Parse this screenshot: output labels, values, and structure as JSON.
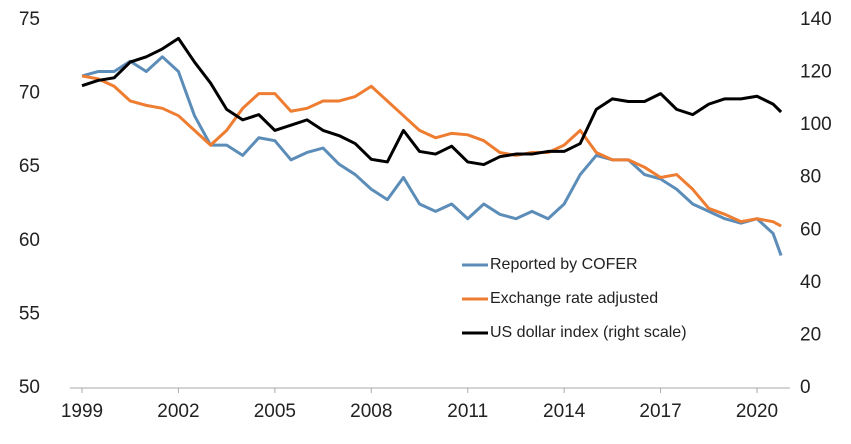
{
  "chart_data": {
    "type": "line",
    "x": [
      1999,
      1999.5,
      2000,
      2000.5,
      2001,
      2001.5,
      2002,
      2002.5,
      2003,
      2003.5,
      2004,
      2004.5,
      2005,
      2005.5,
      2006,
      2006.5,
      2007,
      2007.5,
      2008,
      2008.5,
      2009,
      2009.5,
      2010,
      2010.5,
      2011,
      2011.5,
      2012,
      2012.5,
      2013,
      2013.5,
      2014,
      2014.5,
      2015,
      2015.5,
      2016,
      2016.5,
      2017,
      2017.5,
      2018,
      2018.5,
      2019,
      2019.5,
      2020,
      2020.5,
      2020.75
    ],
    "series": [
      {
        "name": "Reported by COFER",
        "color": "#5b8db8",
        "values": [
          71.2,
          71.5,
          71.5,
          72.2,
          71.5,
          72.5,
          71.5,
          68.5,
          66.5,
          66.5,
          65.8,
          67,
          66.8,
          65.5,
          66,
          66.3,
          65.2,
          64.5,
          63.5,
          62.8,
          64.3,
          62.5,
          62,
          62.5,
          61.5,
          62.5,
          61.8,
          61.5,
          62,
          61.5,
          62.5,
          64.5,
          65.8,
          65.5,
          65.5,
          64.5,
          64.2,
          63.5,
          62.5,
          62,
          61.5,
          61.2,
          61.5,
          60.5,
          59
        ]
      },
      {
        "name": "Exchange rate adjusted",
        "color": "#ee7d31",
        "values": [
          71.2,
          71,
          70.5,
          69.5,
          69.2,
          69,
          68.5,
          67.5,
          66.5,
          67.5,
          69,
          70,
          70,
          68.8,
          69,
          69.5,
          69.5,
          69.8,
          70.5,
          69.5,
          68.5,
          67.5,
          67,
          67.3,
          67.2,
          66.8,
          66,
          65.8,
          66,
          66,
          66.5,
          67.5,
          66,
          65.5,
          65.5,
          65,
          64.3,
          64.5,
          63.5,
          62.2,
          61.8,
          61.3,
          61.5,
          61.3,
          61
        ]
      },
      {
        "name": "US dollar index (right scale)",
        "color": "#000000",
        "axis": "y2",
        "values": [
          115,
          117,
          118,
          124,
          126,
          129,
          133,
          124,
          116,
          106,
          102,
          104,
          98,
          100,
          102,
          98,
          96,
          93,
          87,
          86,
          98,
          90,
          89,
          92,
          86,
          85,
          88,
          89,
          89,
          90,
          90,
          93,
          106,
          110,
          109,
          109,
          112,
          106,
          104,
          108,
          110,
          110,
          111,
          108,
          105
        ]
      }
    ],
    "xlim": [
      1998.8,
      2021.1
    ],
    "xticks": [
      1999,
      2002,
      2005,
      2008,
      2011,
      2014,
      2017,
      2020
    ],
    "ylim": [
      50,
      75
    ],
    "yticks": [
      50,
      55,
      60,
      65,
      70,
      75
    ],
    "y2lim": [
      0,
      140
    ],
    "y2ticks": [
      0,
      20,
      40,
      60,
      80,
      100,
      120,
      140
    ],
    "legend": "lower right",
    "grid": false
  }
}
